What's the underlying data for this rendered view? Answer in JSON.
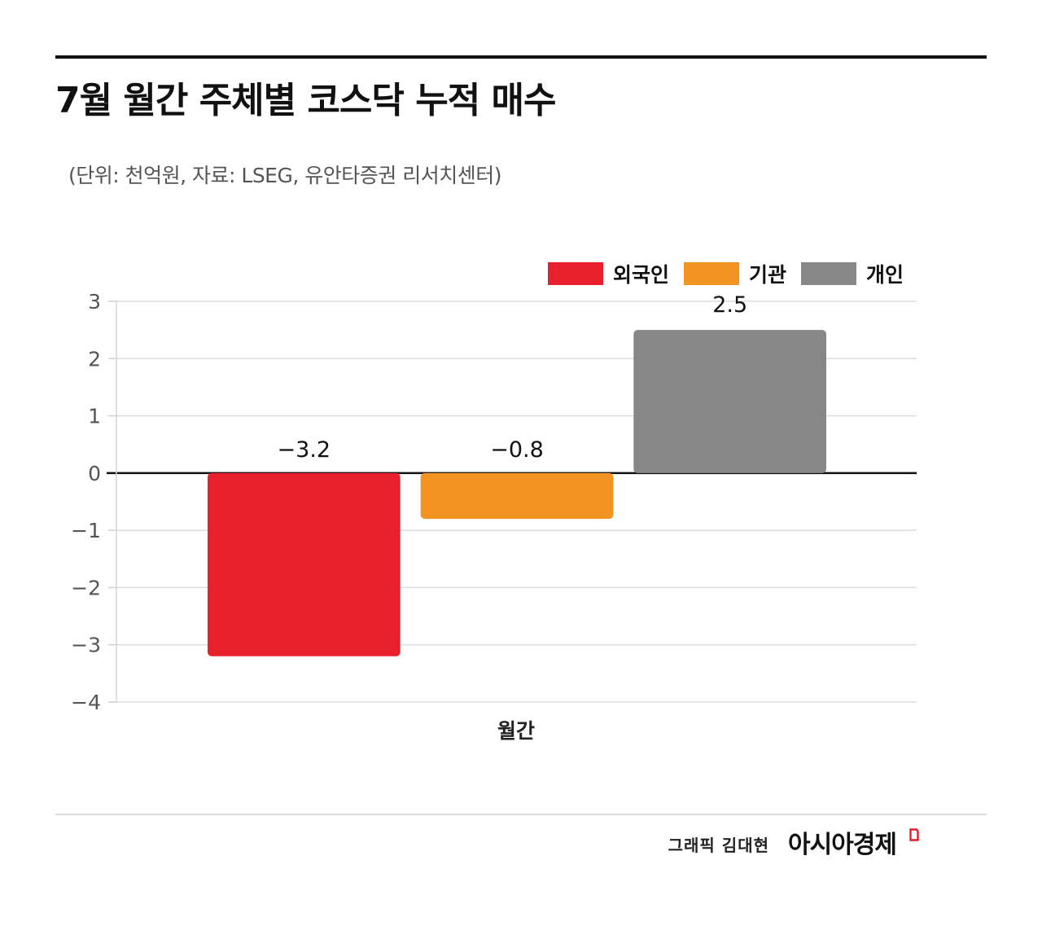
{
  "header": {
    "title": "7월 월간 주체별 코스닥 누적 매수",
    "subtitle": "(단위: 천억원, 자료: LSEG, 유안타증권 리서치센터)"
  },
  "footer": {
    "credit": "그래픽  김대현",
    "brand": "아시아경제",
    "brand_icon": "brand-mark-icon",
    "brand_color": "#e31c2c"
  },
  "chart_data": {
    "type": "bar",
    "categories": [
      "월간"
    ],
    "series": [
      {
        "name": "외국인",
        "values": [
          -3.2
        ],
        "label": "−3.2",
        "color": "#e81f2c"
      },
      {
        "name": "기관",
        "values": [
          -0.8
        ],
        "label": "−0.8",
        "color": "#f39322"
      },
      {
        "name": "개인",
        "values": [
          2.5
        ],
        "label": "2.5",
        "color": "#878787"
      }
    ],
    "yticks": [
      3,
      2,
      1,
      0,
      -1,
      -2,
      -3,
      -4
    ],
    "ytick_labels": [
      "3",
      "2",
      "1",
      "0",
      "−1",
      "−2",
      "−3",
      "−4"
    ],
    "ylim": [
      -4,
      3
    ],
    "xlabel": "",
    "ylabel": "",
    "grid": true,
    "legend": "top-right"
  }
}
